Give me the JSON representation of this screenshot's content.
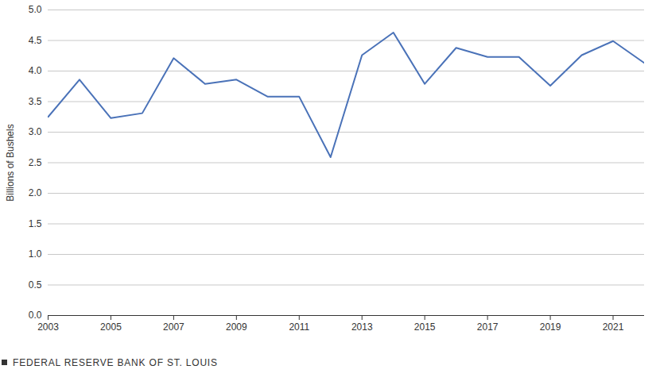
{
  "chart_data": {
    "type": "line",
    "y_label": "Billions of Bushels",
    "caption": "FEDERAL RESERVE BANK OF ST. LOUIS",
    "x": [
      2003,
      2004,
      2005,
      2006,
      2007,
      2008,
      2009,
      2010,
      2011,
      2012,
      2013,
      2014,
      2015,
      2016,
      2017,
      2018,
      2019,
      2020,
      2021,
      2022
    ],
    "values": [
      3.25,
      3.86,
      3.23,
      3.31,
      4.21,
      3.79,
      3.86,
      3.58,
      3.58,
      2.59,
      4.26,
      4.63,
      3.79,
      4.38,
      4.23,
      4.23,
      3.76,
      4.26,
      4.49,
      4.13
    ],
    "color": "#4a72b8",
    "xlim": [
      2003,
      2022
    ],
    "xticks": [
      2003,
      2005,
      2007,
      2009,
      2011,
      2013,
      2015,
      2017,
      2019,
      2021
    ],
    "ylim": [
      0,
      5
    ],
    "yticks": [
      {
        "value": 0,
        "label": "0.0"
      },
      {
        "value": 0.5,
        "label": "0.5"
      },
      {
        "value": 1,
        "label": "1.0"
      },
      {
        "value": 1.5,
        "label": "1.5"
      },
      {
        "value": 2,
        "label": "2.0"
      },
      {
        "value": 2.5,
        "label": "2.5"
      },
      {
        "value": 3,
        "label": "3.0"
      },
      {
        "value": 3.5,
        "label": "3.5"
      },
      {
        "value": 4,
        "label": "4.0"
      },
      {
        "value": 4.5,
        "label": "4.5"
      },
      {
        "value": 5,
        "label": "5.0"
      }
    ],
    "grid": true
  }
}
